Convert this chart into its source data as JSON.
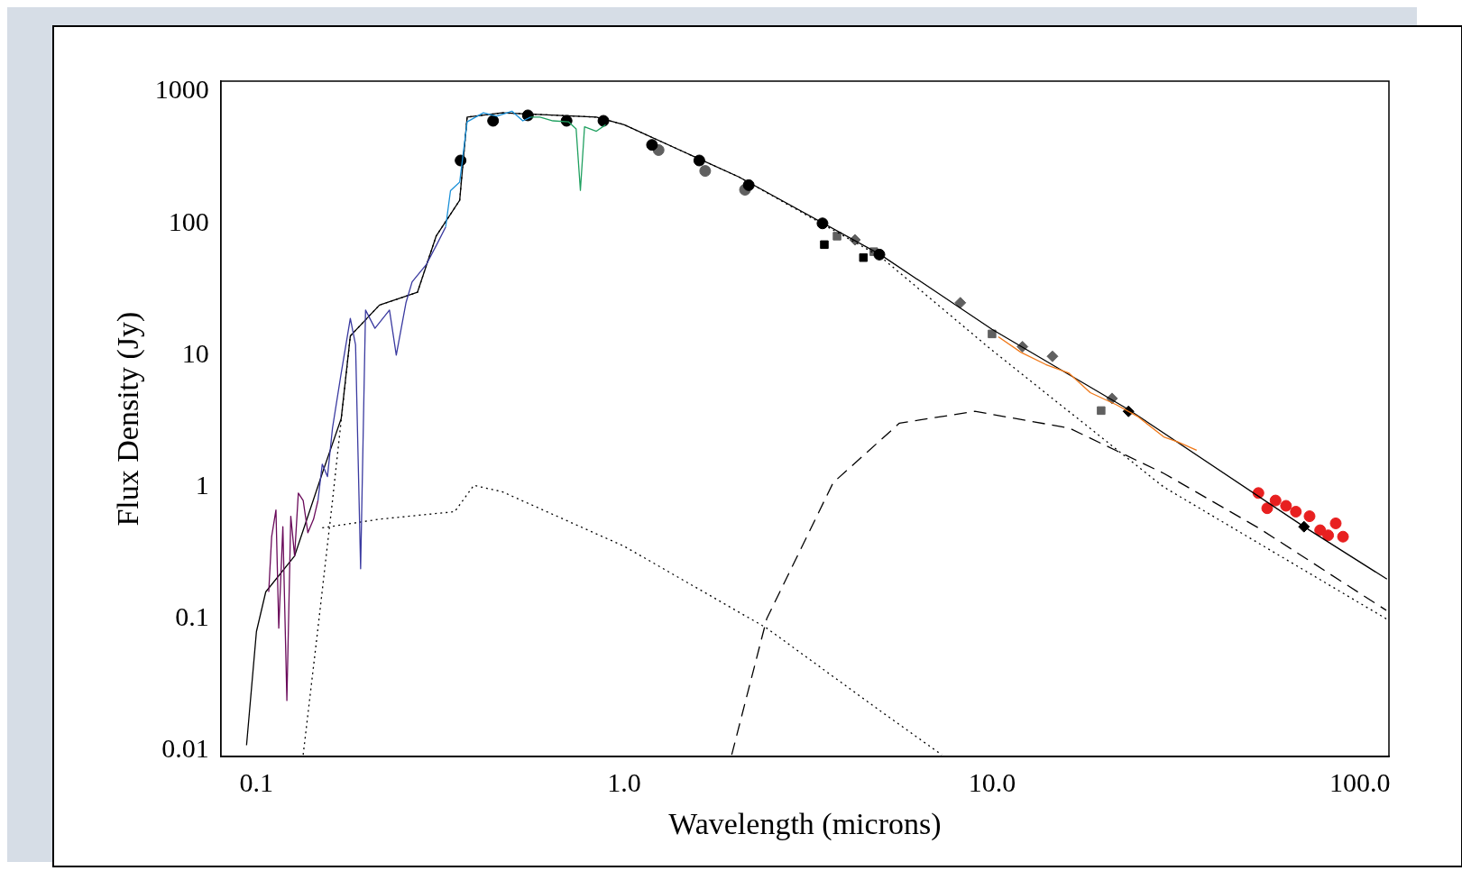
{
  "chart_data": {
    "type": "line",
    "xlabel": "Wavelength (microns)",
    "ylabel": "Flux Density (Jy)",
    "log": "xy",
    "grid": false,
    "legend": false,
    "xlim": [
      0.08,
      120
    ],
    "ylim": [
      0.009,
      1200
    ],
    "xticks": [
      {
        "value": 0.1,
        "label": "0.1"
      },
      {
        "value": 1,
        "label": "1.0"
      },
      {
        "value": 10,
        "label": "10.0"
      },
      {
        "value": 100,
        "label": "100.0"
      }
    ],
    "yticks": [
      0.01,
      0.1,
      1,
      10,
      100,
      1000
    ],
    "series": [
      {
        "color": "#6a0a5a",
        "line_style": "solid",
        "x": [
          0.108,
          0.11,
          0.113,
          0.115,
          0.118,
          0.121,
          0.124,
          0.127,
          0.13,
          0.134,
          0.138,
          0.143,
          0.147
        ],
        "values": [
          0.16,
          0.42,
          0.67,
          0.085,
          0.5,
          0.024,
          0.6,
          0.3,
          0.9,
          0.79,
          0.45,
          0.57,
          0.79
        ]
      },
      {
        "color": "#3a3aa0",
        "line_style": "solid",
        "x": [
          0.147,
          0.151,
          0.156,
          0.161,
          0.17,
          0.18,
          0.186,
          0.192,
          0.198,
          0.21,
          0.23,
          0.24,
          0.255,
          0.265,
          0.29,
          0.31,
          0.327
        ],
        "values": [
          0.79,
          1.49,
          1.2,
          2.8,
          7.3,
          19,
          12,
          0.24,
          22,
          16,
          22,
          10,
          25,
          36,
          49,
          70,
          94
        ]
      },
      {
        "color": "#1a90d8",
        "line_style": "solid",
        "x": [
          0.327,
          0.337,
          0.357,
          0.374,
          0.414,
          0.45,
          0.495,
          0.53,
          0.557
        ],
        "values": [
          94,
          177,
          206,
          590,
          690,
          650,
          710,
          600,
          640
        ]
      },
      {
        "color": "#20a060",
        "line_style": "solid",
        "x": [
          0.557,
          0.59,
          0.64,
          0.705,
          0.74,
          0.76,
          0.78,
          0.84,
          0.89
        ],
        "values": [
          640,
          640,
          600,
          590,
          520,
          178,
          540,
          500,
          560
        ]
      },
      {
        "color": "#f07818",
        "line_style": "solid",
        "x": [
          10.4,
          12,
          14,
          16.2,
          18.5,
          21.8,
          25,
          29.3,
          32,
          36
        ],
        "values": [
          13.8,
          10.5,
          8.5,
          7.3,
          5.2,
          4.2,
          3.4,
          2.4,
          2.2,
          1.9
        ]
      },
      {
        "type": "line",
        "color": "#000000",
        "line_style": "solid",
        "x": [
          0.094,
          0.1,
          0.106,
          0.127,
          0.151,
          0.17,
          0.18,
          0.216,
          0.274,
          0.308,
          0.357,
          0.374,
          0.466,
          0.84,
          1,
          2.05,
          4.97,
          10,
          23.5,
          70.5,
          118.5
        ],
        "values": [
          0.011,
          0.08,
          0.16,
          0.3,
          1.27,
          3.3,
          14,
          24,
          30,
          80,
          150,
          640,
          690,
          640,
          560,
          225,
          58,
          15.7,
          3.87,
          0.5,
          0.2
        ]
      },
      {
        "type": "line",
        "color": "#000000",
        "line_style": "dotted",
        "x": [
          0.134,
          0.147,
          0.161,
          0.18,
          0.216,
          0.274,
          0.308,
          0.357,
          0.374,
          0.466,
          0.84,
          1,
          2.05,
          4.97,
          10,
          29.3,
          118
        ],
        "values": [
          0.0093,
          0.085,
          0.79,
          14,
          24,
          30,
          80,
          150,
          640,
          690,
          640,
          560,
          225,
          56,
          10.9,
          1,
          0.1
        ]
      },
      {
        "type": "line",
        "color": "#000000",
        "line_style": "dashed",
        "x": [
          1.96,
          2.44,
          3.7,
          5.6,
          8.98,
          16.2,
          29.3,
          53,
          118
        ],
        "values": [
          0.0093,
          0.1,
          1.08,
          3.05,
          3.75,
          2.8,
          1.27,
          0.49,
          0.116
        ]
      },
      {
        "type": "line",
        "color": "#000000",
        "line_style": "dotted",
        "x": [
          0.151,
          0.216,
          0.346,
          0.39,
          0.466,
          1,
          2.44,
          4.97,
          7.3
        ],
        "values": [
          0.49,
          0.57,
          0.65,
          1.03,
          0.92,
          0.355,
          0.085,
          0.02,
          0.0093
        ]
      },
      {
        "type": "scatter",
        "color": "#e82020",
        "marker": "circle",
        "x": [
          53,
          56,
          59,
          63,
          67,
          73,
          78,
          82,
          86,
          90
        ],
        "values": [
          0.9,
          0.69,
          0.79,
          0.72,
          0.65,
          0.6,
          0.47,
          0.43,
          0.53,
          0.42
        ]
      },
      {
        "type": "scatter",
        "color": "#000000",
        "marker": "circle",
        "x": [
          0.359,
          0.44,
          0.547,
          0.697,
          0.878,
          1.19,
          1.6,
          2.18,
          3.46,
          4.94
        ],
        "values": [
          300,
          600,
          660,
          600,
          600,
          394,
          300,
          195,
          100,
          58
        ]
      },
      {
        "type": "scatter",
        "color": "#606060",
        "marker": "circle",
        "x": [
          1.24,
          1.66,
          2.13
        ],
        "values": [
          360,
          250,
          180
        ]
      },
      {
        "type": "scatter",
        "color": "#000000",
        "marker": "square",
        "x": [
          3.5,
          4.47
        ],
        "values": [
          69,
          55
        ]
      },
      {
        "type": "scatter",
        "color": "#606060",
        "marker": "square",
        "x": [
          3.79,
          4.77,
          10,
          19.8
        ],
        "values": [
          80,
          61,
          14.5,
          3.8
        ]
      },
      {
        "type": "scatter",
        "color": "#606060",
        "marker": "diamond",
        "x": [
          4.24,
          8.2,
          12.1,
          14.6,
          21.2
        ],
        "values": [
          75,
          25,
          11.6,
          9.8,
          4.7
        ]
      },
      {
        "type": "scatter",
        "color": "#000000",
        "marker": "diamond",
        "x": [
          23.5,
          70.5
        ],
        "values": [
          3.75,
          0.5
        ]
      }
    ]
  }
}
